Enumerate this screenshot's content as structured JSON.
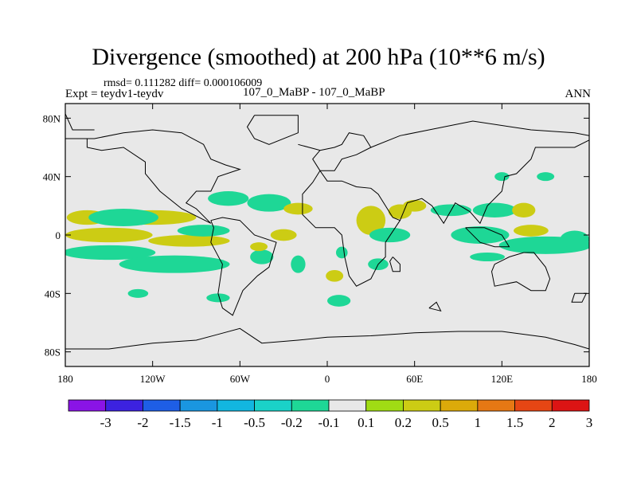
{
  "header": {
    "title": "Divergence (smoothed) at 200 hPa (10**6 m/s)",
    "stats": "rmsd= 0.111282 diff= 0.000106009",
    "left_label": "Expt = teydv1-teydv",
    "center_label": "107_0_MaBP - 107_0_MaBP",
    "right_label": "ANN"
  },
  "chart_data": {
    "type": "heatmap",
    "title": "Divergence (smoothed) at 200 hPa (10**6 m/s)",
    "xlabel": "",
    "ylabel": "",
    "xlim": [
      -180,
      180
    ],
    "ylim": [
      -90,
      90
    ],
    "x_ticks": [
      {
        "value": -180,
        "label": "180"
      },
      {
        "value": -120,
        "label": "120W"
      },
      {
        "value": -60,
        "label": "60W"
      },
      {
        "value": 0,
        "label": "0"
      },
      {
        "value": 60,
        "label": "60E"
      },
      {
        "value": 120,
        "label": "120E"
      },
      {
        "value": 180,
        "label": "180"
      }
    ],
    "y_ticks": [
      {
        "value": 80,
        "label": "80N"
      },
      {
        "value": 40,
        "label": "40N"
      },
      {
        "value": 0,
        "label": "0"
      },
      {
        "value": -40,
        "label": "40S"
      },
      {
        "value": -80,
        "label": "80S"
      }
    ],
    "background_color": "#e8e8e8",
    "levels": [
      "-3",
      "-2",
      "-1.5",
      "-1",
      "-0.5",
      "-0.2",
      "-0.1",
      "0.1",
      "0.2",
      "0.5",
      "1",
      "1.5",
      "2",
      "3"
    ],
    "colors": [
      "#8a14e6",
      "#3c22e0",
      "#1e5ee6",
      "#1a96e0",
      "#12b6e0",
      "#1ad2c8",
      "#1ed796",
      "#e8e8e8",
      "#a0dc14",
      "#cccc14",
      "#dcaa0a",
      "#e67814",
      "#e64614",
      "#dc1414"
    ],
    "anomalies": [
      {
        "lon": -165,
        "lat": 12,
        "rx": 14,
        "ry": 5,
        "value": 0.3
      },
      {
        "lon": -120,
        "lat": 12,
        "rx": 30,
        "ry": 5,
        "value": 0.3
      },
      {
        "lon": -150,
        "lat": 0,
        "rx": 30,
        "ry": 5,
        "value": 0.3
      },
      {
        "lon": -95,
        "lat": -4,
        "rx": 28,
        "ry": 4,
        "value": 0.3
      },
      {
        "lon": -150,
        "lat": -12,
        "rx": 32,
        "ry": 5,
        "value": -0.15
      },
      {
        "lon": -105,
        "lat": -20,
        "rx": 38,
        "ry": 6,
        "value": -0.15
      },
      {
        "lon": -140,
        "lat": 12,
        "rx": 24,
        "ry": 6,
        "value": -0.15
      },
      {
        "lon": -85,
        "lat": 3,
        "rx": 18,
        "ry": 4,
        "value": -0.15
      },
      {
        "lon": -130,
        "lat": -40,
        "rx": 7,
        "ry": 3,
        "value": -0.15
      },
      {
        "lon": -75,
        "lat": -43,
        "rx": 8,
        "ry": 3,
        "value": -0.15
      },
      {
        "lon": -40,
        "lat": 22,
        "rx": 15,
        "ry": 6,
        "value": -0.15
      },
      {
        "lon": -68,
        "lat": 25,
        "rx": 14,
        "ry": 5,
        "value": -0.15
      },
      {
        "lon": -45,
        "lat": -15,
        "rx": 8,
        "ry": 5,
        "value": -0.15
      },
      {
        "lon": -20,
        "lat": 18,
        "rx": 10,
        "ry": 4,
        "value": 0.3
      },
      {
        "lon": -30,
        "lat": 0,
        "rx": 9,
        "ry": 4,
        "value": 0.3
      },
      {
        "lon": -47,
        "lat": -8,
        "rx": 6,
        "ry": 3,
        "value": 0.3
      },
      {
        "lon": -20,
        "lat": -20,
        "rx": 5,
        "ry": 6,
        "value": -0.15
      },
      {
        "lon": 10,
        "lat": -12,
        "rx": 4,
        "ry": 4,
        "value": -0.15
      },
      {
        "lon": 8,
        "lat": -45,
        "rx": 8,
        "ry": 4,
        "value": -0.15
      },
      {
        "lon": 5,
        "lat": -28,
        "rx": 6,
        "ry": 4,
        "value": 0.3
      },
      {
        "lon": 30,
        "lat": 10,
        "rx": 10,
        "ry": 10,
        "value": 0.3
      },
      {
        "lon": 50,
        "lat": 16,
        "rx": 8,
        "ry": 5,
        "value": 0.3
      },
      {
        "lon": 43,
        "lat": 0,
        "rx": 14,
        "ry": 5,
        "value": -0.15
      },
      {
        "lon": 35,
        "lat": -20,
        "rx": 7,
        "ry": 4,
        "value": -0.15
      },
      {
        "lon": 60,
        "lat": 20,
        "rx": 8,
        "ry": 4,
        "value": 0.3
      },
      {
        "lon": 85,
        "lat": 17,
        "rx": 14,
        "ry": 4,
        "value": -0.15
      },
      {
        "lon": 115,
        "lat": 17,
        "rx": 15,
        "ry": 5,
        "value": -0.15
      },
      {
        "lon": 135,
        "lat": 17,
        "rx": 8,
        "ry": 5,
        "value": 0.3
      },
      {
        "lon": 105,
        "lat": 0,
        "rx": 20,
        "ry": 6,
        "value": -0.15
      },
      {
        "lon": 150,
        "lat": -7,
        "rx": 32,
        "ry": 6,
        "value": -0.15
      },
      {
        "lon": 170,
        "lat": -3,
        "rx": 10,
        "ry": 6,
        "value": -0.15
      },
      {
        "lon": 140,
        "lat": 3,
        "rx": 12,
        "ry": 4,
        "value": 0.3
      },
      {
        "lon": 110,
        "lat": -15,
        "rx": 12,
        "ry": 3,
        "value": -0.15
      },
      {
        "lon": 150,
        "lat": 40,
        "rx": 6,
        "ry": 3,
        "value": -0.15
      },
      {
        "lon": 120,
        "lat": 40,
        "rx": 5,
        "ry": 3,
        "value": -0.15
      }
    ],
    "coastlines": [
      [
        [
          -180,
          66
        ],
        [
          -160,
          66
        ],
        [
          -140,
          70
        ],
        [
          -120,
          72
        ],
        [
          -100,
          70
        ],
        [
          -85,
          62
        ],
        [
          -80,
          52
        ],
        [
          -70,
          48
        ],
        [
          -60,
          45
        ],
        [
          -75,
          40
        ],
        [
          -80,
          30
        ],
        [
          -90,
          30
        ],
        [
          -97,
          22
        ],
        [
          -90,
          18
        ],
        [
          -82,
          10
        ],
        [
          -80,
          8
        ],
        [
          -100,
          18
        ],
        [
          -115,
          30
        ],
        [
          -125,
          42
        ],
        [
          -125,
          50
        ],
        [
          -140,
          60
        ],
        [
          -155,
          58
        ],
        [
          -165,
          60
        ],
        [
          -165,
          66
        ]
      ],
      [
        [
          -80,
          10
        ],
        [
          -72,
          12
        ],
        [
          -60,
          10
        ],
        [
          -50,
          0
        ],
        [
          -35,
          -5
        ],
        [
          -40,
          -22
        ],
        [
          -48,
          -28
        ],
        [
          -58,
          -38
        ],
        [
          -65,
          -55
        ],
        [
          -72,
          -50
        ],
        [
          -75,
          -40
        ],
        [
          -72,
          -20
        ],
        [
          -80,
          -5
        ],
        [
          -78,
          5
        ],
        [
          -80,
          10
        ]
      ],
      [
        [
          -50,
          82
        ],
        [
          -20,
          82
        ],
        [
          -20,
          70
        ],
        [
          -40,
          62
        ],
        [
          -50,
          66
        ],
        [
          -55,
          74
        ],
        [
          -50,
          82
        ]
      ],
      [
        [
          -20,
          62
        ],
        [
          -5,
          58
        ],
        [
          -10,
          52
        ],
        [
          -5,
          44
        ],
        [
          -10,
          36
        ],
        [
          -17,
          28
        ],
        [
          -17,
          14
        ],
        [
          -8,
          5
        ],
        [
          5,
          5
        ],
        [
          10,
          0
        ],
        [
          12,
          -15
        ],
        [
          15,
          -28
        ],
        [
          20,
          -35
        ],
        [
          30,
          -30
        ],
        [
          35,
          -20
        ],
        [
          40,
          -15
        ],
        [
          40,
          -5
        ],
        [
          50,
          10
        ],
        [
          45,
          12
        ],
        [
          35,
          28
        ],
        [
          30,
          32
        ],
        [
          20,
          33
        ],
        [
          10,
          37
        ],
        [
          0,
          37
        ],
        [
          -5,
          44
        ],
        [
          5,
          44
        ],
        [
          10,
          52
        ],
        [
          20,
          55
        ],
        [
          30,
          60
        ],
        [
          25,
          68
        ],
        [
          15,
          70
        ],
        [
          10,
          62
        ],
        [
          5,
          60
        ],
        [
          -5,
          58
        ]
      ],
      [
        [
          30,
          60
        ],
        [
          50,
          68
        ],
        [
          70,
          72
        ],
        [
          100,
          78
        ],
        [
          140,
          72
        ],
        [
          170,
          70
        ],
        [
          180,
          68
        ]
      ],
      [
        [
          50,
          10
        ],
        [
          55,
          22
        ],
        [
          65,
          25
        ],
        [
          72,
          20
        ],
        [
          80,
          8
        ],
        [
          88,
          22
        ],
        [
          98,
          16
        ],
        [
          105,
          8
        ],
        [
          110,
          20
        ],
        [
          120,
          30
        ],
        [
          122,
          40
        ],
        [
          130,
          42
        ],
        [
          140,
          52
        ],
        [
          143,
          60
        ],
        [
          160,
          60
        ],
        [
          170,
          60
        ],
        [
          180,
          65
        ]
      ],
      [
        [
          45,
          -15
        ],
        [
          50,
          -20
        ],
        [
          50,
          -25
        ],
        [
          45,
          -25
        ],
        [
          43,
          -18
        ],
        [
          45,
          -15
        ]
      ],
      [
        [
          95,
          5
        ],
        [
          105,
          -5
        ],
        [
          115,
          -8
        ],
        [
          125,
          -8
        ],
        [
          120,
          0
        ],
        [
          108,
          5
        ],
        [
          95,
          5
        ]
      ],
      [
        [
          115,
          -20
        ],
        [
          125,
          -15
        ],
        [
          135,
          -12
        ],
        [
          142,
          -12
        ],
        [
          150,
          -22
        ],
        [
          153,
          -30
        ],
        [
          150,
          -38
        ],
        [
          140,
          -38
        ],
        [
          130,
          -32
        ],
        [
          115,
          -35
        ],
        [
          113,
          -25
        ],
        [
          115,
          -20
        ]
      ],
      [
        [
          -180,
          -78
        ],
        [
          -150,
          -78
        ],
        [
          -120,
          -74
        ],
        [
          -90,
          -72
        ],
        [
          -75,
          -68
        ],
        [
          -60,
          -64
        ],
        [
          -45,
          -74
        ],
        [
          -20,
          -72
        ],
        [
          0,
          -70
        ],
        [
          30,
          -69
        ],
        [
          60,
          -67
        ],
        [
          90,
          -66
        ],
        [
          120,
          -66
        ],
        [
          150,
          -70
        ],
        [
          170,
          -75
        ],
        [
          180,
          -78
        ]
      ],
      [
        [
          -180,
          83
        ],
        [
          -175,
          72
        ],
        [
          -160,
          72
        ]
      ],
      [
        [
          70,
          -50
        ],
        [
          78,
          -52
        ],
        [
          75,
          -46
        ],
        [
          70,
          -50
        ]
      ],
      [
        [
          170,
          -40
        ],
        [
          178,
          -40
        ],
        [
          175,
          -46
        ],
        [
          168,
          -46
        ],
        [
          170,
          -40
        ]
      ]
    ]
  },
  "colorbar": {
    "labels": [
      "-3",
      "-2",
      "-1.5",
      "-1",
      "-0.5",
      "-0.2",
      "-0.1",
      "0.1",
      "0.2",
      "0.5",
      "1",
      "1.5",
      "2",
      "3"
    ]
  }
}
